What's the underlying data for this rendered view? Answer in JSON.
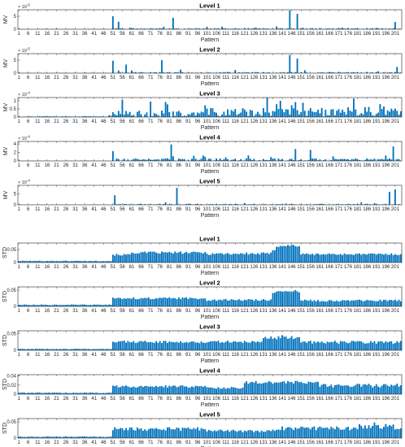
{
  "chart_data": [
    {
      "type": "bar",
      "title": "Level 1",
      "ylabel": "MV",
      "xlabel": "Pattern",
      "multiplier": "× 10",
      "exponent": "-5",
      "yticks": [
        "0",
        "5"
      ],
      "ymax": 7.5,
      "seed": 11,
      "profile": [
        [
          0,
          50,
          0.06,
          0.5
        ],
        [
          50,
          205,
          0.22,
          1.0
        ]
      ],
      "peaks": [
        [
          51,
          5.0
        ],
        [
          54,
          2.9
        ],
        [
          83,
          4.4
        ],
        [
          145,
          7.2
        ],
        [
          149,
          5.9
        ],
        [
          201,
          2.8
        ]
      ],
      "color": "#0072BD"
    },
    {
      "type": "bar",
      "title": "Level 2",
      "ylabel": "MV",
      "xlabel": "Pattern",
      "multiplier": "× 10",
      "exponent": "-5",
      "yticks": [
        "0",
        "5"
      ],
      "ymax": 7.5,
      "seed": 23,
      "profile": [
        [
          0,
          50,
          0.06,
          0.5
        ],
        [
          50,
          205,
          0.22,
          1.0
        ]
      ],
      "peaks": [
        [
          51,
          4.8
        ],
        [
          58,
          3.3
        ],
        [
          77,
          5.0
        ],
        [
          145,
          7.0
        ],
        [
          149,
          5.6
        ],
        [
          202,
          2.4
        ]
      ],
      "color": "#0072BD"
    },
    {
      "type": "bar",
      "title": "Level 3",
      "ylabel": "MV",
      "xlabel": "Pattern",
      "multiplier": "× 10",
      "exponent": "-4",
      "yticks": [
        "0",
        "0.5",
        "1"
      ],
      "ymax": 1.2,
      "seed": 37,
      "profile": [
        [
          0,
          50,
          0.03,
          0.6
        ],
        [
          50,
          100,
          0.2,
          1.0
        ],
        [
          100,
          205,
          0.28,
          1.0
        ]
      ],
      "peaks": [
        [
          71,
          0.95
        ],
        [
          80,
          0.78
        ],
        [
          140,
          1.0
        ],
        [
          148,
          0.92
        ],
        [
          176,
          0.6
        ]
      ],
      "color": "#0072BD"
    },
    {
      "type": "bar",
      "title": "Level 4",
      "ylabel": "MV",
      "xlabel": "Pattern",
      "multiplier": "× 10",
      "exponent": "-4",
      "yticks": [
        "0",
        "2",
        "4"
      ],
      "ymax": 4.6,
      "seed": 53,
      "profile": [
        [
          0,
          50,
          0.03,
          0.6
        ],
        [
          50,
          205,
          0.3,
          1.0
        ]
      ],
      "peaks": [
        [
          51,
          2.3
        ],
        [
          82,
          3.9
        ],
        [
          148,
          2.8
        ],
        [
          156,
          2.6
        ],
        [
          200,
          3.4
        ]
      ],
      "color": "#0072BD"
    },
    {
      "type": "bar",
      "title": "Level 5",
      "ylabel": "MV",
      "xlabel": "Pattern",
      "multiplier": "× 10",
      "exponent": "-4",
      "yticks": [
        "0",
        "5"
      ],
      "ymax": 9.0,
      "seed": 71,
      "profile": [
        [
          0,
          50,
          0.03,
          0.6
        ],
        [
          50,
          205,
          0.2,
          1.0
        ]
      ],
      "peaks": [
        [
          52,
          4.4
        ],
        [
          85,
          7.8
        ],
        [
          198,
          6.0
        ],
        [
          201,
          7.1
        ]
      ],
      "color": "#0072BD"
    },
    {
      "type": "bar",
      "title": "Level 1",
      "ylabel": "STD",
      "xlabel": "Pattern",
      "yticks": [
        "0",
        "0.05"
      ],
      "ymax": 0.075,
      "seed": 101,
      "profile": [
        [
          0,
          50,
          0.006,
          0.2
        ],
        [
          50,
          60,
          0.03,
          0.12
        ],
        [
          60,
          100,
          0.038,
          0.12
        ],
        [
          100,
          135,
          0.034,
          0.15
        ],
        [
          135,
          137,
          0.05,
          0.1
        ],
        [
          137,
          150,
          0.065,
          0.1
        ],
        [
          150,
          205,
          0.032,
          0.12
        ]
      ],
      "peaks": [],
      "color": "#0072BD"
    },
    {
      "type": "bar",
      "title": "Level 2",
      "ylabel": "STD",
      "xlabel": "Pattern",
      "yticks": [
        "0",
        "0.05"
      ],
      "ymax": 0.06,
      "seed": 113,
      "profile": [
        [
          0,
          50,
          0.005,
          0.2
        ],
        [
          50,
          100,
          0.025,
          0.12
        ],
        [
          100,
          135,
          0.02,
          0.15
        ],
        [
          135,
          150,
          0.045,
          0.12
        ],
        [
          150,
          205,
          0.018,
          0.18
        ]
      ],
      "peaks": [],
      "color": "#0072BD"
    },
    {
      "type": "bar",
      "title": "Level 3",
      "ylabel": "STD",
      "xlabel": "Pattern",
      "yticks": [
        "0",
        "0.05"
      ],
      "ymax": 0.058,
      "seed": 127,
      "profile": [
        [
          0,
          50,
          0.004,
          0.2
        ],
        [
          50,
          130,
          0.025,
          0.15
        ],
        [
          130,
          150,
          0.038,
          0.15
        ],
        [
          150,
          205,
          0.024,
          0.18
        ]
      ],
      "peaks": [
        [
          141,
          0.045
        ]
      ],
      "color": "#0072BD"
    },
    {
      "type": "bar",
      "title": "Level 4",
      "ylabel": "STD",
      "xlabel": "Pattern",
      "yticks": [
        "0",
        "0.02",
        "0.04"
      ],
      "ymax": 0.043,
      "seed": 139,
      "profile": [
        [
          0,
          50,
          0.003,
          0.25
        ],
        [
          50,
          100,
          0.017,
          0.15
        ],
        [
          100,
          120,
          0.014,
          0.15
        ],
        [
          120,
          160,
          0.026,
          0.12
        ],
        [
          160,
          205,
          0.019,
          0.22
        ]
      ],
      "peaks": [],
      "color": "#0072BD"
    },
    {
      "type": "bar",
      "title": "Level 5",
      "ylabel": "STD",
      "xlabel": "Pattern",
      "yticks": [
        "0",
        "0.05"
      ],
      "ymax": 0.06,
      "seed": 151,
      "profile": [
        [
          0,
          50,
          0.004,
          0.25
        ],
        [
          50,
          100,
          0.028,
          0.2
        ],
        [
          100,
          140,
          0.022,
          0.2
        ],
        [
          140,
          180,
          0.03,
          0.2
        ],
        [
          180,
          205,
          0.035,
          0.25
        ]
      ],
      "peaks": [
        [
          190,
          0.048
        ]
      ],
      "color": "#0072BD"
    }
  ],
  "x_ticks": [
    "1",
    "6",
    "11",
    "16",
    "21",
    "26",
    "31",
    "36",
    "41",
    "46",
    "51",
    "56",
    "61",
    "66",
    "71",
    "76",
    "81",
    "86",
    "91",
    "96",
    "101",
    "106",
    "111",
    "116",
    "121",
    "126",
    "131",
    "136",
    "141",
    "146",
    "151",
    "156",
    "161",
    "166",
    "171",
    "176",
    "181",
    "186",
    "191",
    "196",
    "201"
  ],
  "n_patterns": 204
}
